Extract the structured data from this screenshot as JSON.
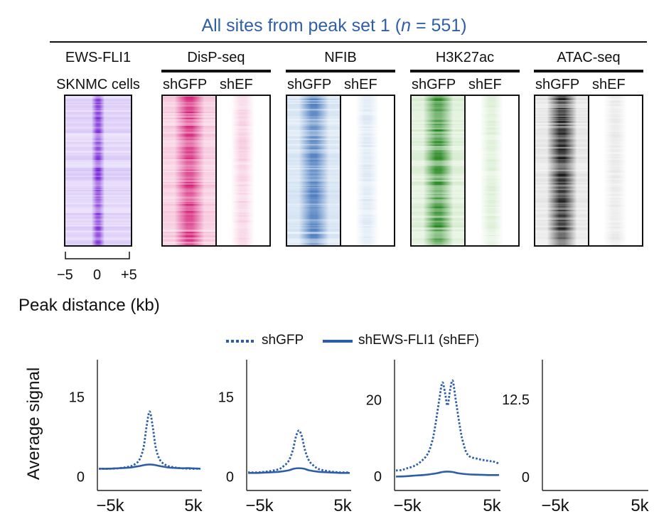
{
  "chart_data": {
    "type": "line",
    "title_prefix": "All sites from peak set 1 (",
    "title_n": "n",
    "title_suffix": " = 551)",
    "title_color": "#2f5fa8",
    "heatmap_panels": [
      {
        "label": "EWS-FLI1",
        "cell_label": "SKNMC cells",
        "conditions": [],
        "color": "#7a2bd6",
        "bg": "#d9c8f7"
      },
      {
        "label": "DisP-seq",
        "conditions": [
          "shGFP",
          "shEF"
        ],
        "color": "#d6247a",
        "bg": "#f6c3da"
      },
      {
        "label": "NFIB",
        "conditions": [
          "shGFP",
          "shEF"
        ],
        "color": "#4f7fc0",
        "bg": "#d3e2f2"
      },
      {
        "label": "H3K27ac",
        "conditions": [
          "shGFP",
          "shEF"
        ],
        "color": "#2a8a24",
        "bg": "#d6eccf"
      },
      {
        "label": "ATAC-seq",
        "conditions": [
          "shGFP",
          "shEF"
        ],
        "color": "#1a1a1a",
        "bg": "#e3e3e3"
      }
    ],
    "heatmap_axis": {
      "ticks": [
        "−5",
        "0",
        "+5"
      ],
      "label": "Peak distance (kb)"
    },
    "legend": [
      {
        "name": "shGFP",
        "style": "dotted"
      },
      {
        "name": "shEWS-FLI1 (shEF)",
        "style": "solid"
      }
    ],
    "line_color": "#2e5da8",
    "ylabel": "Average signal",
    "xlim": [
      -5,
      5
    ],
    "x_tick_labels": [
      "−5k",
      "5k"
    ],
    "line_panels": [
      {
        "ytick": 15,
        "ytick_label": "15",
        "ylim": [
          -1,
          21
        ],
        "series": [
          {
            "name": "shGFP",
            "x": [
              -5,
              -4,
              -3,
              -2,
              -1.5,
              -1,
              -0.6,
              -0.3,
              0,
              0.3,
              0.6,
              1,
              1.5,
              2,
              3,
              4,
              5
            ],
            "y": [
              1.5,
              1.5,
              1.6,
              1.9,
              2.3,
              3.2,
              5.5,
              9.5,
              12.3,
              9.5,
              5.5,
              3.2,
              2.3,
              1.9,
              1.6,
              1.5,
              1.5
            ]
          },
          {
            "name": "shEF",
            "x": [
              -5,
              -4,
              -3,
              -2,
              -1,
              -0.5,
              0,
              0.5,
              1,
              2,
              3,
              4,
              5
            ],
            "y": [
              1.5,
              1.5,
              1.6,
              1.7,
              2.0,
              2.2,
              2.3,
              2.2,
              2.0,
              1.7,
              1.6,
              1.6,
              1.5
            ]
          }
        ]
      },
      {
        "ytick": 15,
        "ytick_label": "15",
        "ylim": [
          -1,
          21
        ],
        "series": [
          {
            "name": "shGFP",
            "x": [
              -5,
              -4,
              -3,
              -2,
              -1.5,
              -1,
              -0.6,
              -0.3,
              0,
              0.3,
              0.6,
              1,
              1.5,
              2,
              3,
              4,
              5
            ],
            "y": [
              0.8,
              0.8,
              1.0,
              1.4,
              2.0,
              3.0,
              5.0,
              7.5,
              8.7,
              7.5,
              5.0,
              3.0,
              2.0,
              1.4,
              1.0,
              0.8,
              0.8
            ]
          },
          {
            "name": "shEF",
            "x": [
              -5,
              -4,
              -3,
              -2,
              -1,
              -0.5,
              0,
              0.5,
              1,
              2,
              3,
              4,
              5
            ],
            "y": [
              0.7,
              0.7,
              0.8,
              0.9,
              1.2,
              1.5,
              1.6,
              1.5,
              1.2,
              0.9,
              0.8,
              0.7,
              0.7
            ]
          }
        ]
      },
      {
        "ytick": 20,
        "ytick_label": "20",
        "ylim": [
          -1.5,
          29
        ],
        "series": [
          {
            "name": "shGFP",
            "x": [
              -5,
              -4.5,
              -4,
              -3,
              -2,
              -1.5,
              -1.2,
              -0.8,
              -0.5,
              -0.25,
              0,
              0.25,
              0.5,
              0.8,
              1.2,
              1.5,
              2,
              3,
              4,
              4.5,
              5
            ],
            "y": [
              1.5,
              1.6,
              2.0,
              3.0,
              5.5,
              9.0,
              13.0,
              20.0,
              24.5,
              22.0,
              18.5,
              22.5,
              25.0,
              20.0,
              13.0,
              9.0,
              5.5,
              4.5,
              4.0,
              3.8,
              3.3
            ]
          },
          {
            "name": "shEF",
            "x": [
              -5,
              -4,
              -3,
              -2,
              -1,
              -0.5,
              0,
              0.5,
              1,
              2,
              3,
              4,
              5
            ],
            "y": [
              -0.1,
              0.0,
              0.2,
              0.4,
              0.8,
              1.1,
              1.2,
              1.1,
              0.8,
              0.5,
              0.4,
              0.3,
              0.3
            ]
          }
        ]
      },
      {
        "ytick": 12.5,
        "ytick_label": "12.5",
        "ylim": [
          -0.8,
          18
        ]
      },
      {}
    ]
  }
}
